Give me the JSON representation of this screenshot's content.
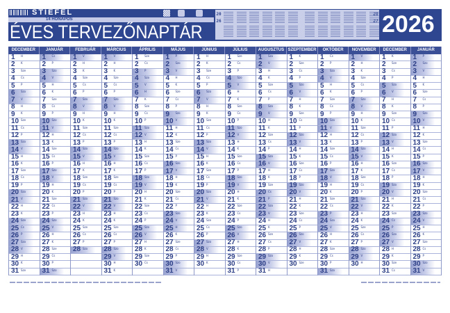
{
  "header": {
    "brand": "STIEFEL",
    "subtitle": "14 HÓNAPOS",
    "title": "ÉVES TERVEZŐNAPTÁR",
    "year": "2026",
    "mini_year_left": "2026",
    "mini_year_right": "2027"
  },
  "colors": {
    "brand_blue": "#2e4590",
    "header_blue": "#3a4f96",
    "weekend_shade": "#9aa4d2"
  },
  "weekday_labels": [
    "H",
    "K",
    "Sze",
    "Cs",
    "P",
    "Szo",
    "V"
  ],
  "months": [
    {
      "name": "DECEMBER",
      "days": 31,
      "first_weekday": "H",
      "holidays": [
        24,
        25,
        26
      ]
    },
    {
      "name": "JANUÁR",
      "days": 31,
      "first_weekday": "Cs",
      "holidays": [
        1
      ]
    },
    {
      "name": "FEBRUÁR",
      "days": 28,
      "first_weekday": "V",
      "holidays": []
    },
    {
      "name": "MÁRCIUS",
      "days": 31,
      "first_weekday": "V",
      "holidays": [
        15
      ]
    },
    {
      "name": "ÁPRILIS",
      "days": 30,
      "first_weekday": "Sze",
      "holidays": [
        3,
        6
      ]
    },
    {
      "name": "MÁJUS",
      "days": 31,
      "first_weekday": "P",
      "holidays": [
        1,
        25
      ]
    },
    {
      "name": "JÚNIUS",
      "days": 30,
      "first_weekday": "H",
      "holidays": []
    },
    {
      "name": "JÚLIUS",
      "days": 31,
      "first_weekday": "Sze",
      "holidays": []
    },
    {
      "name": "AUGUSZTUS",
      "days": 31,
      "first_weekday": "Szo",
      "holidays": [
        20,
        21
      ]
    },
    {
      "name": "SZEPTEMBER",
      "days": 30,
      "first_weekday": "K",
      "holidays": []
    },
    {
      "name": "OKTÓBER",
      "days": 31,
      "first_weekday": "Cs",
      "holidays": [
        23
      ]
    },
    {
      "name": "NOVEMBER",
      "days": 30,
      "first_weekday": "V",
      "holidays": []
    },
    {
      "name": "DECEMBER",
      "days": 31,
      "first_weekday": "K",
      "holidays": [
        24,
        25,
        26
      ]
    },
    {
      "name": "JANUÁR",
      "days": 31,
      "first_weekday": "P",
      "holidays": [
        1
      ]
    }
  ]
}
